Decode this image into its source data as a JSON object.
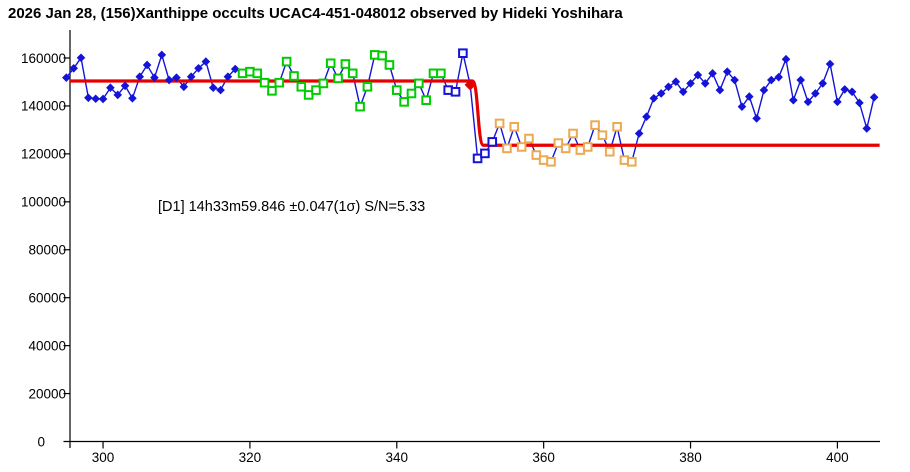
{
  "window": {
    "title": "2026 Jan 28, (156)Xanthippe occults UCAC4-451-048012 observed by Hideki Yoshihara"
  },
  "colors": {
    "sample_blue": "#1414D8",
    "pre_event_green": "#00CC00",
    "occulted_orange": "#EBA952",
    "model_red": "#E60000",
    "axis_black": "#000000",
    "background": "#FFFFFF"
  },
  "chart_data": {
    "type": "line",
    "title": "2026 Jan 28, (156)Xanthippe occults UCAC4-451-048012 observed by Hideki Yoshihara",
    "annotation": "[D1] 14h33m59.846 ±0.047(1σ) S/N=5.33",
    "xlabel": "",
    "ylabel": "",
    "grid": false,
    "legend_position": "none",
    "x_ticks": [
      300,
      320,
      340,
      360,
      380,
      400
    ],
    "y_ticks": [
      0,
      20000,
      40000,
      60000,
      80000,
      100000,
      120000,
      140000,
      160000
    ],
    "xlim": [
      295.5,
      405.8
    ],
    "ylim": [
      0,
      160000
    ],
    "marker_types": {
      "b": "blue filled diamond",
      "g": "green open square",
      "o": "orange open square",
      "bo": "blue open square",
      "r": "red filled diamond (D1 event point)"
    },
    "model": {
      "baseline_level": 150400,
      "occulted_level": 123600,
      "drop_start": 350.3,
      "drop_end": 351.8,
      "start": 295.5,
      "end": 405.75,
      "color": "#E60000"
    },
    "points": [
      [
        295,
        151800,
        "b"
      ],
      [
        296,
        155700,
        "b"
      ],
      [
        297,
        160100,
        "b"
      ],
      [
        298,
        143400,
        "b"
      ],
      [
        299,
        143000,
        "b"
      ],
      [
        300,
        142900,
        "b"
      ],
      [
        301,
        147600,
        "b"
      ],
      [
        302,
        144600,
        "b"
      ],
      [
        303,
        148400,
        "b"
      ],
      [
        304,
        143200,
        "b"
      ],
      [
        305,
        152200,
        "b"
      ],
      [
        306,
        157100,
        "b"
      ],
      [
        307,
        151800,
        "b"
      ],
      [
        308,
        161300,
        "b"
      ],
      [
        309,
        150800,
        "b"
      ],
      [
        310,
        151800,
        "b"
      ],
      [
        311,
        148000,
        "b"
      ],
      [
        312,
        152200,
        "b"
      ],
      [
        313,
        155700,
        "b"
      ],
      [
        314,
        158500,
        "b"
      ],
      [
        315,
        147600,
        "b"
      ],
      [
        316,
        146600,
        "b"
      ],
      [
        317,
        152200,
        "b"
      ],
      [
        318,
        155400,
        "b"
      ],
      [
        319,
        153600,
        "g"
      ],
      [
        320,
        154300,
        "g"
      ],
      [
        321,
        153600,
        "g"
      ],
      [
        322,
        149700,
        "g"
      ],
      [
        323,
        146300,
        "g"
      ],
      [
        324,
        149700,
        "g"
      ],
      [
        325,
        158500,
        "g"
      ],
      [
        326,
        152500,
        "g"
      ],
      [
        327,
        148000,
        "g"
      ],
      [
        328,
        144600,
        "g"
      ],
      [
        329,
        146600,
        "g"
      ],
      [
        330,
        149400,
        "g"
      ],
      [
        331,
        157800,
        "g"
      ],
      [
        332,
        151500,
        "g"
      ],
      [
        333,
        157500,
        "g"
      ],
      [
        334,
        153600,
        "g"
      ],
      [
        335,
        139700,
        "g"
      ],
      [
        336,
        148000,
        "g"
      ],
      [
        337,
        161300,
        "g"
      ],
      [
        338,
        161000,
        "g"
      ],
      [
        339,
        157100,
        "g"
      ],
      [
        340,
        146600,
        "g"
      ],
      [
        341,
        141700,
        "g"
      ],
      [
        342,
        145200,
        "g"
      ],
      [
        343,
        149400,
        "g"
      ],
      [
        344,
        142400,
        "g"
      ],
      [
        345,
        153600,
        "g"
      ],
      [
        346,
        153600,
        "g"
      ],
      [
        347,
        146600,
        "bo"
      ],
      [
        348,
        145900,
        "bo"
      ],
      [
        349,
        162000,
        "bo"
      ],
      [
        350,
        148800,
        "r"
      ],
      [
        351,
        118100,
        "bo"
      ],
      [
        352,
        120200,
        "bo"
      ],
      [
        353,
        125000,
        "bo"
      ],
      [
        354,
        132700,
        "o"
      ],
      [
        355,
        122300,
        "o"
      ],
      [
        356,
        131300,
        "o"
      ],
      [
        357,
        122900,
        "o"
      ],
      [
        358,
        126400,
        "o"
      ],
      [
        359,
        119500,
        "o"
      ],
      [
        360,
        117400,
        "o"
      ],
      [
        361,
        116700,
        "o"
      ],
      [
        362,
        124500,
        "o"
      ],
      [
        363,
        122300,
        "o"
      ],
      [
        364,
        128500,
        "o"
      ],
      [
        365,
        121600,
        "o"
      ],
      [
        366,
        122900,
        "o"
      ],
      [
        367,
        132000,
        "o"
      ],
      [
        368,
        127800,
        "o"
      ],
      [
        369,
        120900,
        "o"
      ],
      [
        370,
        131300,
        "o"
      ],
      [
        371,
        117400,
        "o"
      ],
      [
        372,
        116700,
        "o"
      ],
      [
        373,
        128500,
        "b"
      ],
      [
        374,
        135500,
        "b"
      ],
      [
        375,
        143200,
        "b"
      ],
      [
        376,
        145200,
        "b"
      ],
      [
        377,
        148000,
        "b"
      ],
      [
        378,
        150100,
        "b"
      ],
      [
        379,
        145900,
        "b"
      ],
      [
        380,
        149400,
        "b"
      ],
      [
        381,
        152900,
        "b"
      ],
      [
        382,
        149400,
        "b"
      ],
      [
        383,
        153600,
        "b"
      ],
      [
        384,
        146600,
        "b"
      ],
      [
        385,
        154300,
        "b"
      ],
      [
        386,
        150800,
        "b"
      ],
      [
        387,
        139700,
        "b"
      ],
      [
        388,
        143900,
        "b"
      ],
      [
        389,
        134800,
        "b"
      ],
      [
        390,
        146600,
        "b"
      ],
      [
        391,
        150800,
        "b"
      ],
      [
        392,
        152000,
        "b"
      ],
      [
        393,
        159500,
        "b"
      ],
      [
        394,
        142400,
        "b"
      ],
      [
        395,
        150800,
        "b"
      ],
      [
        396,
        141700,
        "b"
      ],
      [
        397,
        145200,
        "b"
      ],
      [
        398,
        149400,
        "b"
      ],
      [
        399,
        157500,
        "b"
      ],
      [
        400,
        141700,
        "b"
      ],
      [
        401,
        146900,
        "b"
      ],
      [
        402,
        145900,
        "b"
      ],
      [
        403,
        141300,
        "b"
      ],
      [
        404,
        130600,
        "b"
      ],
      [
        405,
        143600,
        "b"
      ]
    ]
  }
}
